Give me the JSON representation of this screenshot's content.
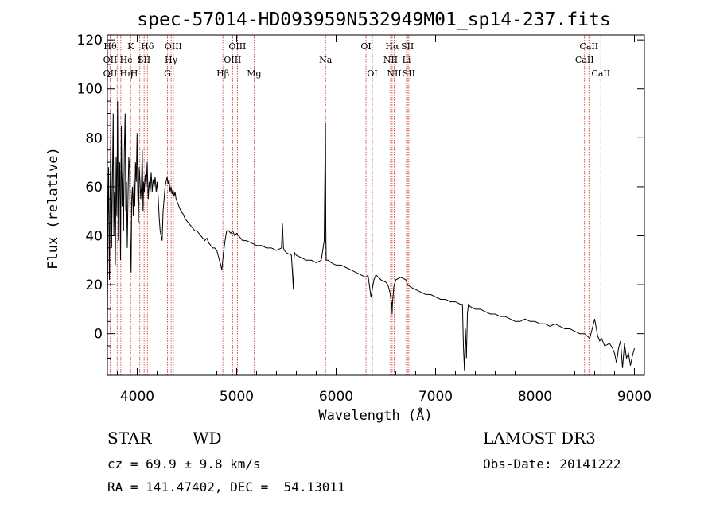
{
  "chart_data": {
    "type": "line",
    "title": "spec-57014-HD093959N532949M01_sp14-237.fits",
    "xlabel": "Wavelength (Å)",
    "ylabel": "Flux (relative)",
    "xlim": [
      3700,
      9100
    ],
    "ylim": [
      -17,
      122
    ],
    "xticks": [
      4000,
      5000,
      6000,
      7000,
      8000,
      9000
    ],
    "yticks": [
      0,
      20,
      40,
      60,
      80,
      100,
      120
    ],
    "grid": false,
    "series": [
      {
        "values_x": [
          3700,
          3705,
          3712,
          3720,
          3727,
          3735,
          3742,
          3750,
          3758,
          3765,
          3772,
          3780,
          3788,
          3795,
          3802,
          3810,
          3818,
          3825,
          3832,
          3840,
          3848,
          3855,
          3862,
          3870,
          3878,
          3885,
          3892,
          3900,
          3908,
          3915,
          3922,
          3930,
          3938,
          3945,
          3952,
          3960,
          3968,
          3975,
          3982,
          3990,
          3998,
          4005,
          4012,
          4020,
          4028,
          4035,
          4042,
          4050,
          4058,
          4065,
          4072,
          4080,
          4090,
          4100,
          4110,
          4120,
          4130,
          4140,
          4150,
          4160,
          4170,
          4180,
          4190,
          4200,
          4210,
          4220,
          4230,
          4240,
          4250,
          4260,
          4270,
          4280,
          4290,
          4300,
          4310,
          4320,
          4330,
          4340,
          4350,
          4360,
          4370,
          4380,
          4390,
          4400,
          4420,
          4440,
          4460,
          4480,
          4500,
          4520,
          4540,
          4560,
          4580,
          4600,
          4620,
          4640,
          4660,
          4680,
          4700,
          4720,
          4740,
          4760,
          4780,
          4800,
          4820,
          4840,
          4850,
          4860,
          4870,
          4880,
          4890,
          4900,
          4920,
          4940,
          4960,
          4980,
          5000,
          5020,
          5040,
          5060,
          5080,
          5100,
          5150,
          5200,
          5250,
          5300,
          5350,
          5400,
          5450,
          5460,
          5470,
          5480,
          5500,
          5550,
          5570,
          5577,
          5584,
          5600,
          5650,
          5700,
          5750,
          5800,
          5850,
          5880,
          5890,
          5893,
          5896,
          5900,
          5920,
          5950,
          6000,
          6050,
          6100,
          6150,
          6200,
          6250,
          6300,
          6320,
          6350,
          6380,
          6400,
          6450,
          6500,
          6520,
          6540,
          6560,
          6563,
          6566,
          6580,
          6600,
          6650,
          6700,
          6720,
          6750,
          6800,
          6850,
          6900,
          6950,
          7000,
          7050,
          7100,
          7150,
          7200,
          7250,
          7270,
          7280,
          7290,
          7300,
          7310,
          7320,
          7330,
          7350,
          7400,
          7450,
          7500,
          7550,
          7600,
          7650,
          7700,
          7750,
          7800,
          7850,
          7900,
          7950,
          8000,
          8050,
          8100,
          8150,
          8200,
          8250,
          8300,
          8350,
          8400,
          8450,
          8500,
          8550,
          8600,
          8630,
          8650,
          8670,
          8700,
          8750,
          8780,
          8800,
          8820,
          8840,
          8860,
          8880,
          8900,
          8920,
          8940,
          8960,
          8980,
          9000
        ],
        "values_y": [
          -2,
          45,
          68,
          22,
          55,
          80,
          35,
          62,
          90,
          40,
          58,
          28,
          72,
          48,
          95,
          38,
          60,
          70,
          30,
          85,
          52,
          66,
          42,
          75,
          90,
          50,
          62,
          35,
          58,
          72,
          68,
          40,
          25,
          55,
          60,
          48,
          64,
          52,
          70,
          62,
          82,
          58,
          45,
          68,
          62,
          55,
          60,
          75,
          50,
          62,
          58,
          65,
          60,
          70,
          55,
          62,
          58,
          66,
          58,
          63,
          60,
          64,
          58,
          62,
          56,
          48,
          42,
          40,
          38,
          50,
          55,
          60,
          62,
          64,
          61,
          63,
          58,
          60,
          57,
          59,
          56,
          58,
          55,
          54,
          52,
          50,
          49,
          47,
          46,
          45,
          44,
          43,
          42,
          42,
          41,
          40,
          39,
          38,
          39,
          37,
          36,
          35,
          35,
          34,
          31,
          28,
          26,
          30,
          34,
          37,
          40,
          42,
          42,
          41,
          42,
          40,
          41,
          40,
          39,
          38,
          38,
          38,
          37,
          36,
          36,
          35,
          35,
          34,
          35,
          45,
          35,
          34,
          33,
          32,
          18,
          31,
          33,
          32,
          31,
          30,
          30,
          29,
          30,
          38,
          80,
          86,
          45,
          30,
          30,
          29,
          28,
          28,
          27,
          26,
          25,
          24,
          23,
          24,
          15,
          22,
          24,
          22,
          21,
          20,
          17,
          12,
          8,
          12,
          19,
          22,
          23,
          22,
          20,
          19,
          18,
          17,
          16,
          16,
          15,
          14,
          14,
          13,
          13,
          12,
          12,
          -5,
          -15,
          2,
          -10,
          8,
          12,
          11,
          10,
          10,
          9,
          8,
          8,
          7,
          7,
          6,
          5,
          5,
          6,
          5,
          5,
          4,
          4,
          3,
          4,
          3,
          2,
          2,
          1,
          0,
          0,
          -2,
          6,
          -1,
          -3,
          -2,
          -5,
          -4,
          -6,
          -8,
          -12,
          -6,
          -3,
          -14,
          -4,
          -10,
          -8,
          -13,
          -9,
          -6
        ]
      }
    ],
    "line_markers": [
      {
        "w": 3728,
        "top": "Hθ",
        "mid": "OII",
        "bot": "OII"
      },
      {
        "w": 3798,
        "top": "",
        "mid": "",
        "bot": ""
      },
      {
        "w": 3835,
        "top": "",
        "mid": "",
        "bot": ""
      },
      {
        "w": 3889,
        "top": "",
        "mid": "He",
        "bot": "Hη"
      },
      {
        "w": 3934,
        "top": "K",
        "mid": "",
        "bot": ""
      },
      {
        "w": 3969,
        "top": "",
        "mid": "",
        "bot": "H"
      },
      {
        "w": 4026,
        "top": "",
        "mid": "I",
        "bot": ""
      },
      {
        "w": 4069,
        "top": "",
        "mid": "SII",
        "bot": ""
      },
      {
        "w": 4102,
        "top": "Hδ",
        "mid": "",
        "bot": ""
      },
      {
        "w": 4304,
        "top": "",
        "mid": "",
        "bot": "G"
      },
      {
        "w": 4341,
        "top": "",
        "mid": "Hγ",
        "bot": ""
      },
      {
        "w": 4363,
        "top": "OIII",
        "mid": "",
        "bot": ""
      },
      {
        "w": 4861,
        "top": "",
        "mid": "",
        "bot": "Hβ"
      },
      {
        "w": 4959,
        "top": "",
        "mid": "OIII",
        "bot": ""
      },
      {
        "w": 5007,
        "top": "OIII",
        "mid": "",
        "bot": ""
      },
      {
        "w": 5175,
        "top": "",
        "mid": "",
        "bot": "Mg"
      },
      {
        "w": 5894,
        "top": "",
        "mid": "Na",
        "bot": ""
      },
      {
        "w": 6300,
        "top": "OI",
        "mid": "",
        "bot": ""
      },
      {
        "w": 6364,
        "top": "",
        "mid": "",
        "bot": "OI"
      },
      {
        "w": 6548,
        "top": "",
        "mid": "NII",
        "bot": ""
      },
      {
        "w": 6563,
        "top": "Hα",
        "mid": "",
        "bot": ""
      },
      {
        "w": 6584,
        "top": "",
        "mid": "",
        "bot": "NII"
      },
      {
        "w": 6708,
        "top": "",
        "mid": "Li",
        "bot": ""
      },
      {
        "w": 6717,
        "top": "SII",
        "mid": "",
        "bot": ""
      },
      {
        "w": 6731,
        "top": "",
        "mid": "",
        "bot": "SII"
      },
      {
        "w": 8498,
        "top": "",
        "mid": "CaII",
        "bot": ""
      },
      {
        "w": 8542,
        "top": "CaII",
        "mid": "",
        "bot": ""
      },
      {
        "w": 8662,
        "top": "",
        "mid": "",
        "bot": "CaII"
      }
    ]
  },
  "info": {
    "class": "STAR",
    "subclass": "WD",
    "survey": "LAMOST DR3",
    "cz": "cz = 69.9 ± 9.8 km/s",
    "obs_date": "Obs-Date: 20141222",
    "coords": "RA = 141.47402, DEC =  54.13011"
  },
  "colors": {
    "spectrum": "#000000",
    "marker": "#cc2222"
  }
}
